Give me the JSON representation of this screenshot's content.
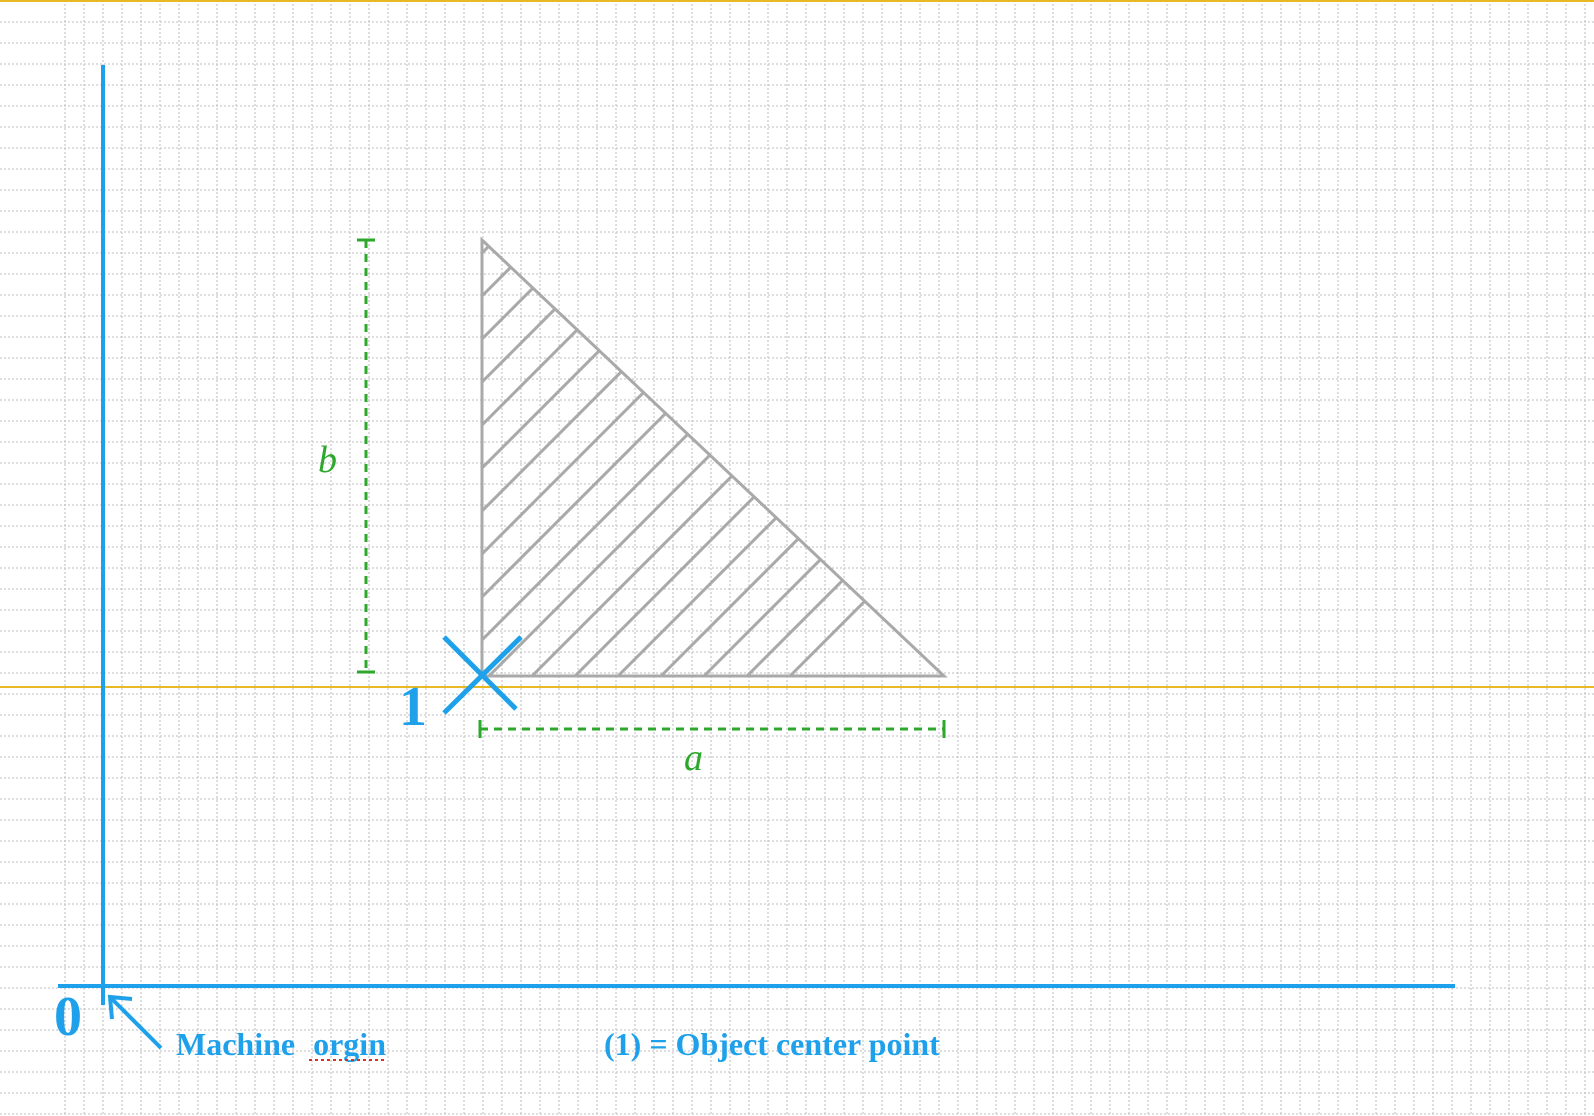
{
  "labels": {
    "origin_number": "0",
    "object_number": "1",
    "machine_origin_word1": "Machine",
    "machine_origin_word2": "orgin",
    "legend": "(1) = Object center point",
    "dim_a": "a",
    "dim_b": "b"
  },
  "colors": {
    "axis": "#1ea1ea",
    "dimension": "#2da82d",
    "shape": "#a9a9a9",
    "guide": "#e8b923",
    "grid": "#bdbdbd",
    "spellcheck": "#d93025"
  }
}
